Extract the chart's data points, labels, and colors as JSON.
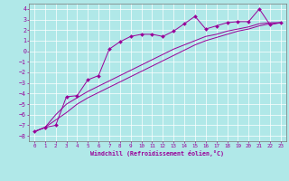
{
  "xlabel": "Windchill (Refroidissement éolien,°C)",
  "bg_color": "#b0e8e8",
  "line_color": "#990099",
  "xlim": [
    -0.5,
    23.5
  ],
  "ylim": [
    -8.5,
    4.5
  ],
  "yticks": [
    -8,
    -7,
    -6,
    -5,
    -4,
    -3,
    -2,
    -1,
    0,
    1,
    2,
    3,
    4
  ],
  "xticks": [
    0,
    1,
    2,
    3,
    4,
    5,
    6,
    7,
    8,
    9,
    10,
    11,
    12,
    13,
    14,
    15,
    16,
    17,
    18,
    19,
    20,
    21,
    22,
    23
  ],
  "line1_x": [
    0,
    1,
    2,
    3,
    4,
    5,
    6,
    7,
    8,
    9,
    10,
    11,
    12,
    13,
    14,
    15,
    16,
    17,
    18,
    19,
    20,
    21,
    22,
    23
  ],
  "line1_y": [
    -7.6,
    -7.2,
    -7.0,
    -4.3,
    -4.2,
    -2.7,
    -2.3,
    0.2,
    0.9,
    1.4,
    1.6,
    1.6,
    1.4,
    1.9,
    2.6,
    3.3,
    2.1,
    2.4,
    2.7,
    2.8,
    2.8,
    4.0,
    2.5,
    2.7
  ],
  "line2_x": [
    0,
    1,
    2,
    3,
    4,
    5,
    6,
    7,
    8,
    9,
    10,
    11,
    12,
    13,
    14,
    15,
    16,
    17,
    18,
    19,
    20,
    21,
    22,
    23
  ],
  "line2_y": [
    -7.6,
    -7.2,
    -6.5,
    -5.8,
    -5.0,
    -4.4,
    -3.9,
    -3.4,
    -2.9,
    -2.4,
    -1.9,
    -1.4,
    -0.9,
    -0.4,
    0.1,
    0.6,
    1.0,
    1.3,
    1.6,
    1.9,
    2.1,
    2.4,
    2.6,
    2.7
  ],
  "line3_x": [
    0,
    1,
    2,
    3,
    4,
    5,
    6,
    7,
    8,
    9,
    10,
    11,
    12,
    13,
    14,
    15,
    16,
    17,
    18,
    19,
    20,
    21,
    22,
    23
  ],
  "line3_y": [
    -7.6,
    -7.2,
    -6.0,
    -5.0,
    -4.4,
    -3.8,
    -3.3,
    -2.8,
    -2.3,
    -1.8,
    -1.3,
    -0.8,
    -0.3,
    0.2,
    0.6,
    1.0,
    1.4,
    1.6,
    1.9,
    2.1,
    2.3,
    2.6,
    2.7,
    2.7
  ],
  "grid_color": "#c8f0f0",
  "spine_color": "#888888"
}
